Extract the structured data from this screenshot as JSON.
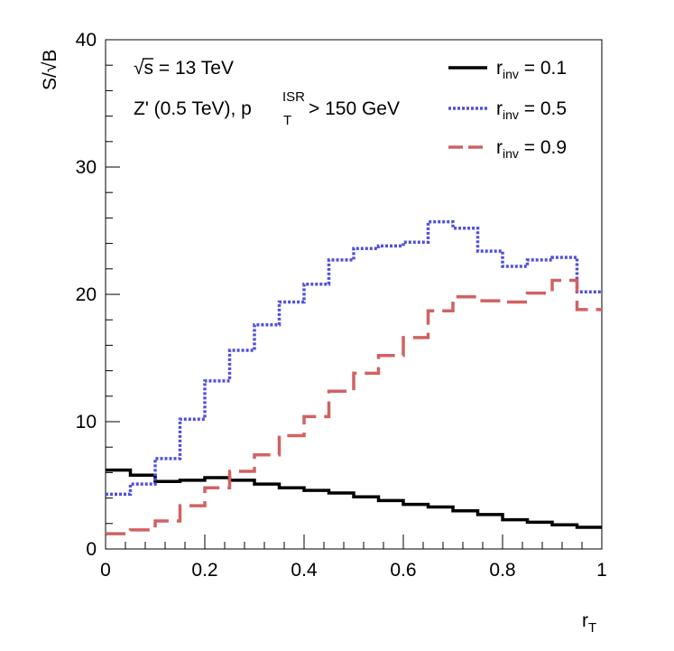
{
  "chart_data": {
    "type": "line",
    "step": true,
    "title": "",
    "xlabel_main": "r",
    "xlabel_sub": "T",
    "ylabel": "S/√B",
    "xlim": [
      0,
      1
    ],
    "ylim": [
      0,
      40
    ],
    "x_ticks": [
      {
        "v": 0,
        "label": "0"
      },
      {
        "v": 0.2,
        "label": "0.2"
      },
      {
        "v": 0.4,
        "label": "0.4"
      },
      {
        "v": 0.6,
        "label": "0.6"
      },
      {
        "v": 0.8,
        "label": "0.8"
      },
      {
        "v": 1,
        "label": "1"
      }
    ],
    "y_ticks": [
      {
        "v": 0,
        "label": "0"
      },
      {
        "v": 10,
        "label": "10"
      },
      {
        "v": 20,
        "label": "20"
      },
      {
        "v": 30,
        "label": "30"
      },
      {
        "v": 40,
        "label": "40"
      }
    ],
    "bin_edges": [
      0,
      0.05,
      0.1,
      0.15,
      0.2,
      0.25,
      0.3,
      0.35,
      0.4,
      0.45,
      0.5,
      0.55,
      0.6,
      0.65,
      0.7,
      0.75,
      0.8,
      0.85,
      0.9,
      0.95,
      1.0
    ],
    "annotations": {
      "energy_sqrt": "√s",
      "energy_rest": " = 13 TeV",
      "model_pre": "Z' (0.5 TeV), p",
      "model_sub": "T",
      "model_sup": "ISR",
      "model_post": " > 150 GeV"
    },
    "legend_position": "top-right",
    "series": [
      {
        "name": "r_inv = 0.1",
        "label_main": "r",
        "label_sub": "inv",
        "label_value": " = 0.1",
        "color": "#000000",
        "style": "solid",
        "values": [
          6.2,
          5.8,
          5.3,
          5.4,
          5.6,
          5.4,
          5.1,
          4.8,
          4.6,
          4.4,
          4.1,
          3.8,
          3.5,
          3.3,
          3.0,
          2.7,
          2.3,
          2.1,
          1.9,
          1.7
        ]
      },
      {
        "name": "r_inv = 0.5",
        "label_main": "r",
        "label_sub": "inv",
        "label_value": " = 0.5",
        "color": "#5050dd",
        "style": "dotted",
        "values": [
          4.3,
          5.1,
          7.1,
          10.2,
          13.2,
          15.6,
          17.6,
          19.4,
          20.8,
          22.7,
          23.6,
          23.8,
          24.1,
          25.7,
          25.2,
          23.4,
          22.2,
          22.7,
          22.9,
          20.2
        ]
      },
      {
        "name": "r_inv = 0.9",
        "label_main": "r",
        "label_sub": "inv",
        "label_value": " = 0.9",
        "color": "#d06262",
        "style": "dashed",
        "values": [
          1.2,
          1.5,
          2.2,
          3.4,
          4.8,
          6.1,
          7.4,
          8.9,
          10.4,
          12.4,
          13.8,
          15.2,
          16.6,
          18.7,
          19.8,
          19.5,
          19.4,
          20.1,
          21.1,
          18.8
        ]
      }
    ]
  }
}
